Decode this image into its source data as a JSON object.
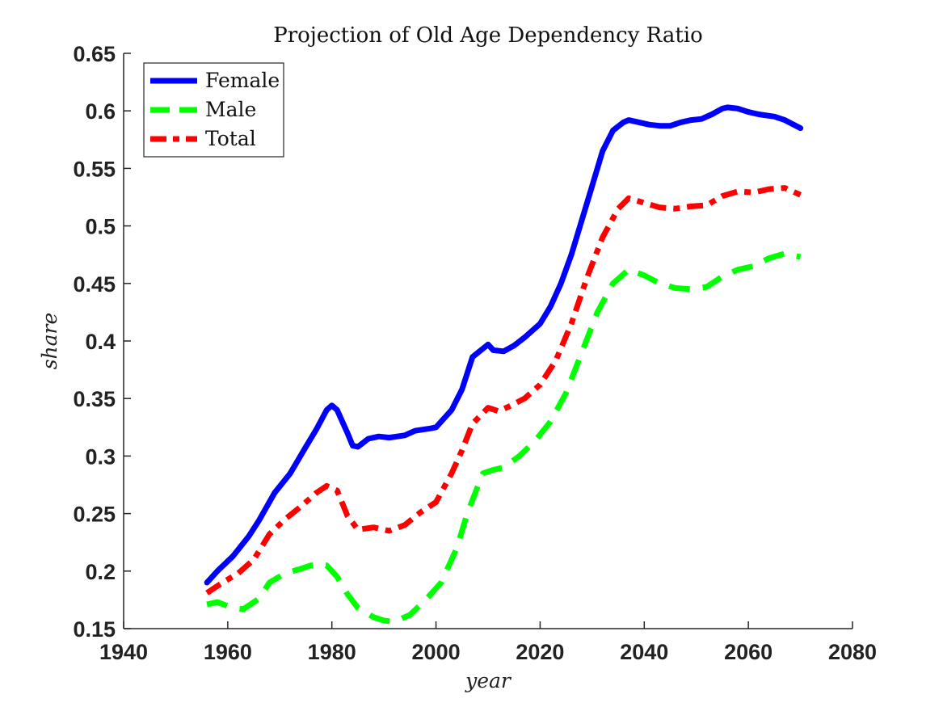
{
  "chart_data": {
    "type": "line",
    "title": "Projection of Old Age Dependency Ratio",
    "xlabel": "year",
    "ylabel": "share",
    "xlim": [
      1940,
      2080
    ],
    "ylim": [
      0.15,
      0.65
    ],
    "xticks": [
      1940,
      1960,
      1980,
      2000,
      2020,
      2040,
      2060,
      2080
    ],
    "yticks": [
      0.15,
      0.2,
      0.25,
      0.3,
      0.35,
      0.4,
      0.45,
      0.5,
      0.55,
      0.6,
      0.65
    ],
    "ytick_labels": [
      "0.15",
      "0.2",
      "0.25",
      "0.3",
      "0.35",
      "0.4",
      "0.45",
      "0.5",
      "0.55",
      "0.6",
      "0.65"
    ],
    "grid": false,
    "legend_position": "top-left",
    "series": [
      {
        "name": "Female",
        "color": "#0000ff",
        "style": "solid",
        "points": [
          [
            1956,
            0.19
          ],
          [
            1958,
            0.2
          ],
          [
            1961,
            0.213
          ],
          [
            1964,
            0.23
          ],
          [
            1966,
            0.244
          ],
          [
            1969,
            0.268
          ],
          [
            1972,
            0.285
          ],
          [
            1975,
            0.308
          ],
          [
            1977,
            0.323
          ],
          [
            1979,
            0.34
          ],
          [
            1980,
            0.344
          ],
          [
            1981,
            0.34
          ],
          [
            1983,
            0.32
          ],
          [
            1984,
            0.309
          ],
          [
            1985,
            0.308
          ],
          [
            1987,
            0.315
          ],
          [
            1989,
            0.317
          ],
          [
            1991,
            0.316
          ],
          [
            1994,
            0.318
          ],
          [
            1996,
            0.322
          ],
          [
            1999,
            0.324
          ],
          [
            2000,
            0.325
          ],
          [
            2003,
            0.34
          ],
          [
            2005,
            0.358
          ],
          [
            2007,
            0.386
          ],
          [
            2010,
            0.397
          ],
          [
            2011,
            0.392
          ],
          [
            2013,
            0.391
          ],
          [
            2015,
            0.396
          ],
          [
            2017,
            0.403
          ],
          [
            2020,
            0.415
          ],
          [
            2022,
            0.43
          ],
          [
            2024,
            0.45
          ],
          [
            2026,
            0.475
          ],
          [
            2028,
            0.505
          ],
          [
            2030,
            0.535
          ],
          [
            2032,
            0.565
          ],
          [
            2034,
            0.583
          ],
          [
            2036,
            0.59
          ],
          [
            2037,
            0.592
          ],
          [
            2039,
            0.59
          ],
          [
            2041,
            0.588
          ],
          [
            2043,
            0.587
          ],
          [
            2045,
            0.587
          ],
          [
            2047,
            0.59
          ],
          [
            2049,
            0.592
          ],
          [
            2051,
            0.593
          ],
          [
            2053,
            0.597
          ],
          [
            2055,
            0.602
          ],
          [
            2056,
            0.603
          ],
          [
            2058,
            0.602
          ],
          [
            2060,
            0.599
          ],
          [
            2062,
            0.597
          ],
          [
            2065,
            0.595
          ],
          [
            2067,
            0.592
          ],
          [
            2070,
            0.585
          ]
        ]
      },
      {
        "name": "Male",
        "color": "#00ff00",
        "style": "dashed",
        "points": [
          [
            1956,
            0.171
          ],
          [
            1958,
            0.173
          ],
          [
            1961,
            0.168
          ],
          [
            1963,
            0.167
          ],
          [
            1966,
            0.176
          ],
          [
            1968,
            0.19
          ],
          [
            1971,
            0.198
          ],
          [
            1974,
            0.202
          ],
          [
            1976,
            0.205
          ],
          [
            1979,
            0.205
          ],
          [
            1981,
            0.195
          ],
          [
            1983,
            0.18
          ],
          [
            1985,
            0.168
          ],
          [
            1988,
            0.16
          ],
          [
            1990,
            0.157
          ],
          [
            1992,
            0.156
          ],
          [
            1995,
            0.162
          ],
          [
            1998,
            0.175
          ],
          [
            2001,
            0.19
          ],
          [
            2004,
            0.22
          ],
          [
            2006,
            0.25
          ],
          [
            2009,
            0.285
          ],
          [
            2011,
            0.288
          ],
          [
            2013,
            0.29
          ],
          [
            2016,
            0.3
          ],
          [
            2019,
            0.313
          ],
          [
            2022,
            0.33
          ],
          [
            2025,
            0.355
          ],
          [
            2028,
            0.39
          ],
          [
            2031,
            0.425
          ],
          [
            2034,
            0.45
          ],
          [
            2037,
            0.462
          ],
          [
            2040,
            0.457
          ],
          [
            2043,
            0.45
          ],
          [
            2046,
            0.446
          ],
          [
            2049,
            0.445
          ],
          [
            2052,
            0.447
          ],
          [
            2055,
            0.456
          ],
          [
            2058,
            0.462
          ],
          [
            2061,
            0.465
          ],
          [
            2064,
            0.472
          ],
          [
            2067,
            0.476
          ],
          [
            2070,
            0.473
          ]
        ]
      },
      {
        "name": "Total",
        "color": "#ff0000",
        "style": "dashdot",
        "points": [
          [
            1956,
            0.181
          ],
          [
            1959,
            0.19
          ],
          [
            1962,
            0.198
          ],
          [
            1965,
            0.21
          ],
          [
            1968,
            0.232
          ],
          [
            1971,
            0.245
          ],
          [
            1974,
            0.256
          ],
          [
            1977,
            0.268
          ],
          [
            1979,
            0.274
          ],
          [
            1981,
            0.27
          ],
          [
            1983,
            0.248
          ],
          [
            1985,
            0.236
          ],
          [
            1988,
            0.238
          ],
          [
            1991,
            0.235
          ],
          [
            1994,
            0.24
          ],
          [
            1997,
            0.251
          ],
          [
            2000,
            0.26
          ],
          [
            2003,
            0.285
          ],
          [
            2005,
            0.305
          ],
          [
            2007,
            0.328
          ],
          [
            2010,
            0.342
          ],
          [
            2012,
            0.339
          ],
          [
            2014,
            0.343
          ],
          [
            2017,
            0.35
          ],
          [
            2020,
            0.362
          ],
          [
            2023,
            0.383
          ],
          [
            2026,
            0.415
          ],
          [
            2029,
            0.455
          ],
          [
            2032,
            0.49
          ],
          [
            2035,
            0.515
          ],
          [
            2037,
            0.524
          ],
          [
            2040,
            0.52
          ],
          [
            2043,
            0.516
          ],
          [
            2046,
            0.515
          ],
          [
            2049,
            0.517
          ],
          [
            2052,
            0.518
          ],
          [
            2055,
            0.526
          ],
          [
            2058,
            0.53
          ],
          [
            2061,
            0.529
          ],
          [
            2064,
            0.532
          ],
          [
            2067,
            0.533
          ],
          [
            2070,
            0.527
          ]
        ]
      }
    ]
  }
}
